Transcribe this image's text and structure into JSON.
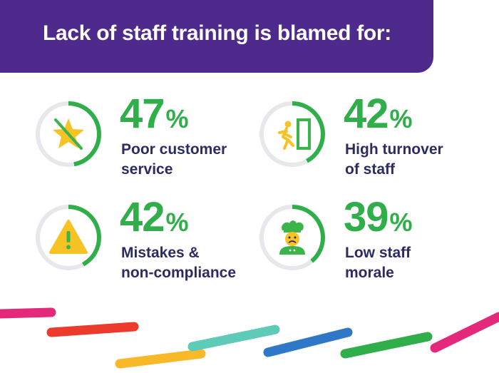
{
  "title": "Lack of staff training is blamed for:",
  "colors": {
    "banner": "#4e2a8c",
    "accent_green": "#2fae4a",
    "ring_grey": "#e8e8ec",
    "label_navy": "#2e2a63",
    "icon_yellow": "#f7c324",
    "icon_green": "#3bb54a"
  },
  "stats": [
    {
      "value": 47,
      "label_line1": "Poor customer",
      "label_line2": "service",
      "icon": "crossed-out-star-icon"
    },
    {
      "value": 42,
      "label_line1": "High turnover",
      "label_line2": "of staff",
      "icon": "person-exiting-door-icon"
    },
    {
      "value": 42,
      "label_line1": "Mistakes &",
      "label_line2": "non-compliance",
      "icon": "warning-triangle-icon"
    },
    {
      "value": 39,
      "label_line1": "Low staff",
      "label_line2": "morale",
      "icon": "unhappy-chef-icon"
    }
  ],
  "percent_symbol": "%",
  "stripe_colors": [
    "#e4287a",
    "#ec3b2c",
    "#f7b928",
    "#5ecbb8",
    "#2f78c8",
    "#2fae4a",
    "#e4287a"
  ]
}
